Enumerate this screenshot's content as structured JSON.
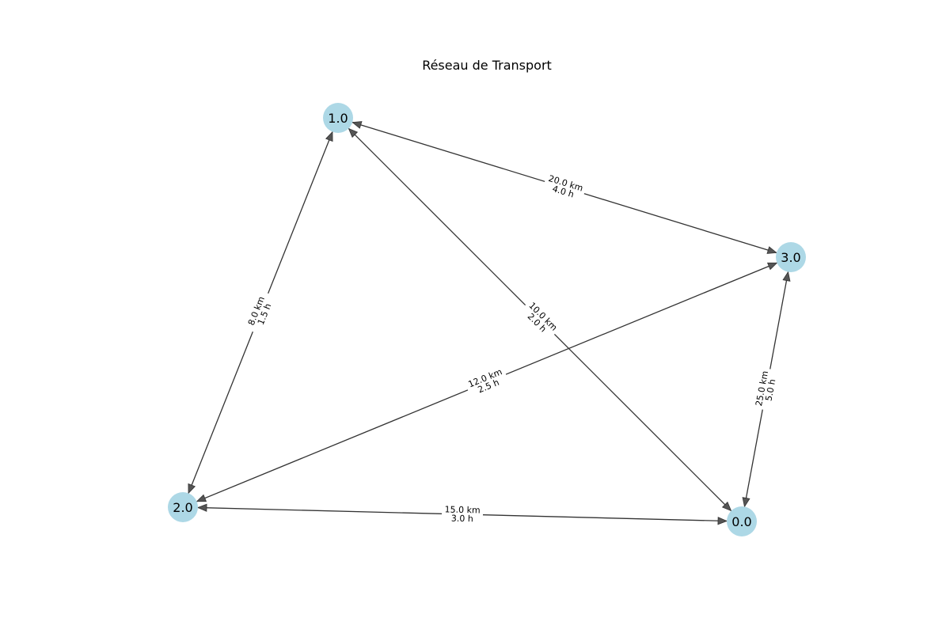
{
  "title": "Réseau de Transport",
  "colors": {
    "node_fill": "#add8e6",
    "edge": "#333333",
    "arrow_head": "#555555",
    "label_bg": "#ffffff"
  },
  "nodes": [
    {
      "id": "0.0",
      "label": "0.0"
    },
    {
      "id": "1.0",
      "label": "1.0"
    },
    {
      "id": "2.0",
      "label": "2.0"
    },
    {
      "id": "3.0",
      "label": "3.0"
    }
  ],
  "edges": [
    {
      "from": "1.0",
      "to": "3.0",
      "bidirectional": true,
      "distance": "20.0 km",
      "time": "4.0 h"
    },
    {
      "from": "1.0",
      "to": "2.0",
      "bidirectional": true,
      "distance": "8.0 km",
      "time": "1.5 h"
    },
    {
      "from": "1.0",
      "to": "0.0",
      "bidirectional": true,
      "distance": "10.0 km",
      "time": "2.0 h"
    },
    {
      "from": "3.0",
      "to": "2.0",
      "bidirectional": true,
      "distance": "12.0 km",
      "time": "2.5 h"
    },
    {
      "from": "3.0",
      "to": "0.0",
      "bidirectional": true,
      "distance": "25.0 km",
      "time": "5.0 h"
    },
    {
      "from": "2.0",
      "to": "0.0",
      "bidirectional": true,
      "distance": "15.0 km",
      "time": "3.0 h"
    }
  ]
}
